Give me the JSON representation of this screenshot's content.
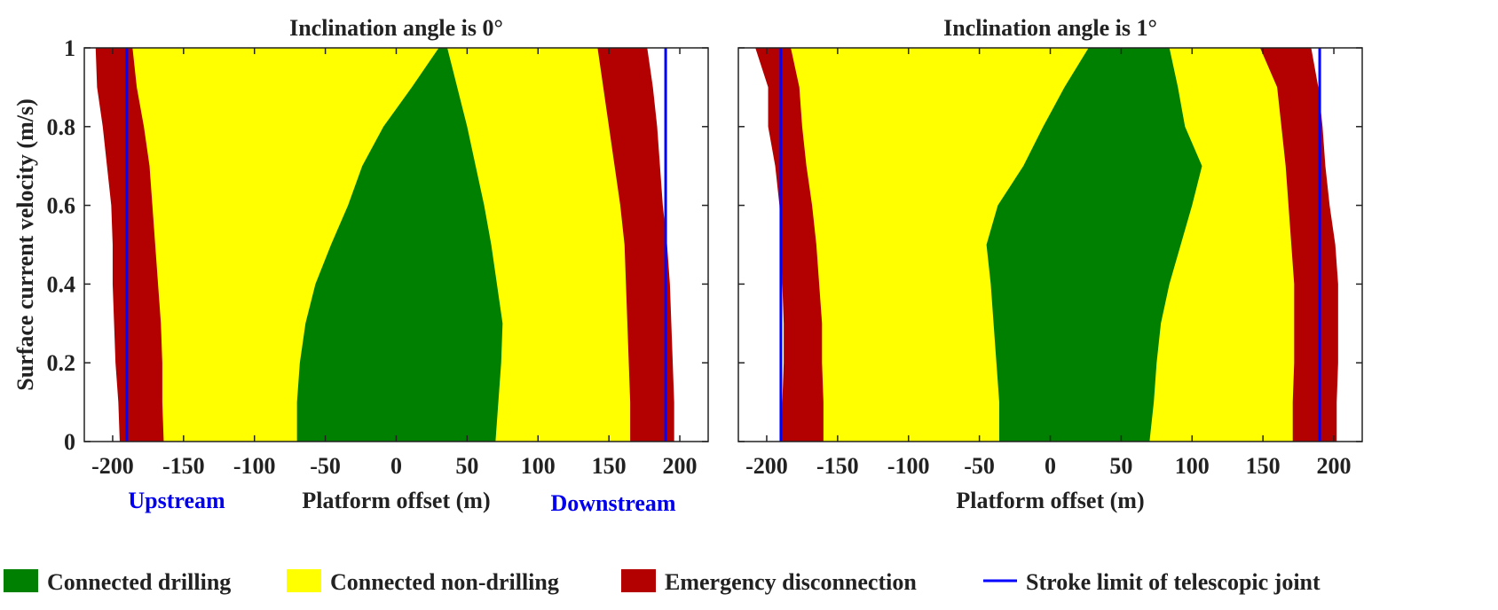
{
  "colors": {
    "drilling": "#008000",
    "non_drilling": "#ffff00",
    "emergency": "#b30000",
    "stroke_limit": "#0000ff",
    "background": "#ffffff",
    "axis": "#222222"
  },
  "ylabel": "Surface current velocity (m/s)",
  "chart_data": [
    {
      "type": "area",
      "title": "Inclination angle is 0°",
      "xlabel": "Platform offset (m)",
      "ylabel": "Surface current velocity (m/s)",
      "xlim": [
        -220,
        220
      ],
      "ylim": [
        0,
        1
      ],
      "xticks": [
        "-200",
        "-150",
        "-100",
        "-50",
        "0",
        "50",
        "100",
        "150",
        "200"
      ],
      "yticks": [
        "0",
        "0.2",
        "0.4",
        "0.6",
        "0.8",
        "1"
      ],
      "side_labels": {
        "left": "Upstream",
        "right": "Downstream"
      },
      "y": [
        0,
        0.1,
        0.2,
        0.3,
        0.4,
        0.5,
        0.6,
        0.7,
        0.8,
        0.9,
        1.0
      ],
      "boundaries": {
        "emergency_left": [
          -195,
          -196,
          -198,
          -199,
          -200,
          -200,
          -201,
          -204,
          -207,
          -211,
          -212
        ],
        "connected_left": [
          -164,
          -165,
          -165,
          -166,
          -168,
          -170,
          -172,
          -174,
          -178,
          -183,
          -186
        ],
        "drilling_left": [
          -70,
          -70,
          -68,
          -64,
          -57,
          -46,
          -34,
          -24,
          -9,
          11,
          30
        ],
        "drilling_right": [
          70,
          72,
          74,
          75,
          71,
          67,
          62,
          56,
          50,
          43,
          36
        ],
        "connected_right": [
          165,
          165,
          164,
          163,
          162,
          161,
          158,
          154,
          150,
          146,
          142
        ],
        "emergency_right": [
          196,
          196,
          195,
          194,
          193,
          191,
          188,
          186,
          184,
          181,
          177
        ]
      },
      "stroke_limits": [
        -190,
        190
      ]
    },
    {
      "type": "area",
      "title": "Inclination angle is 1°",
      "xlabel": "Platform offset (m)",
      "xlim": [
        -220,
        220
      ],
      "ylim": [
        0,
        1
      ],
      "xticks": [
        "-200",
        "-150",
        "-100",
        "-50",
        "0",
        "50",
        "100",
        "150",
        "200"
      ],
      "yticks": [
        "0",
        "0.2",
        "0.4",
        "0.6",
        "0.8",
        "1"
      ],
      "y": [
        0,
        0.1,
        0.2,
        0.3,
        0.4,
        0.5,
        0.6,
        0.7,
        0.8,
        0.9,
        1.0
      ],
      "boundaries": {
        "emergency_left": [
          -190,
          -189,
          -188,
          -188,
          -189,
          -190,
          -191,
          -194,
          -199,
          -199,
          -208
        ],
        "connected_left": [
          -160,
          -160,
          -161,
          -161,
          -163,
          -165,
          -168,
          -172,
          -175,
          -177,
          -183
        ],
        "drilling_left": [
          -36,
          -36,
          -38,
          -40,
          -42,
          -45,
          -37,
          -19,
          -5,
          10,
          27
        ],
        "drilling_right": [
          70,
          73,
          75,
          78,
          84,
          92,
          100,
          107,
          95,
          90,
          84
        ],
        "connected_right": [
          171,
          171,
          172,
          172,
          172,
          170,
          168,
          166,
          163,
          160,
          148
        ],
        "emergency_right": [
          202,
          202,
          203,
          203,
          203,
          201,
          197,
          194,
          192,
          189,
          184
        ]
      },
      "stroke_limits": [
        -190,
        190
      ]
    }
  ],
  "legend": [
    {
      "label": "Connected drilling",
      "color": "#008000",
      "kind": "box"
    },
    {
      "label": "Connected non-drilling",
      "color": "#ffff00",
      "kind": "box"
    },
    {
      "label": "Emergency disconnection",
      "color": "#b30000",
      "kind": "box"
    },
    {
      "label": "Stroke limit of telescopic joint",
      "color": "#0000ff",
      "kind": "line"
    }
  ]
}
